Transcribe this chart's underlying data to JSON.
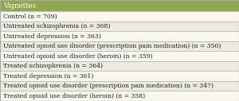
{
  "title": "Vignettes",
  "title_bg": "#8FA850",
  "title_fg": "#ffffff",
  "row_bg_light": "#F7F7EE",
  "row_bg_medium": "#EAEADE",
  "border_color": "#AAAAAA",
  "text_color": "#1A1A1A",
  "rows": [
    "Control (n = 709)",
    "Untreated schizophrenia (n = 368)",
    "Untreated depression (n = 363)",
    "Untreated opioid use disorder (prescription pain medication) (n = 350)",
    "Untreated opioid use disorder (heroin) (n = 359)",
    "Treated schizophrenia (n = 364)",
    "Treated depression (n = 361)",
    "Treated opioid use disorder (prescription pain medication) (n = 347)",
    "Treated opioid use disorder (heroin) (n = 358)"
  ],
  "font_size": 5.5,
  "title_font_size": 6.2,
  "fig_width": 3.0,
  "fig_height": 1.27,
  "dpi": 100
}
